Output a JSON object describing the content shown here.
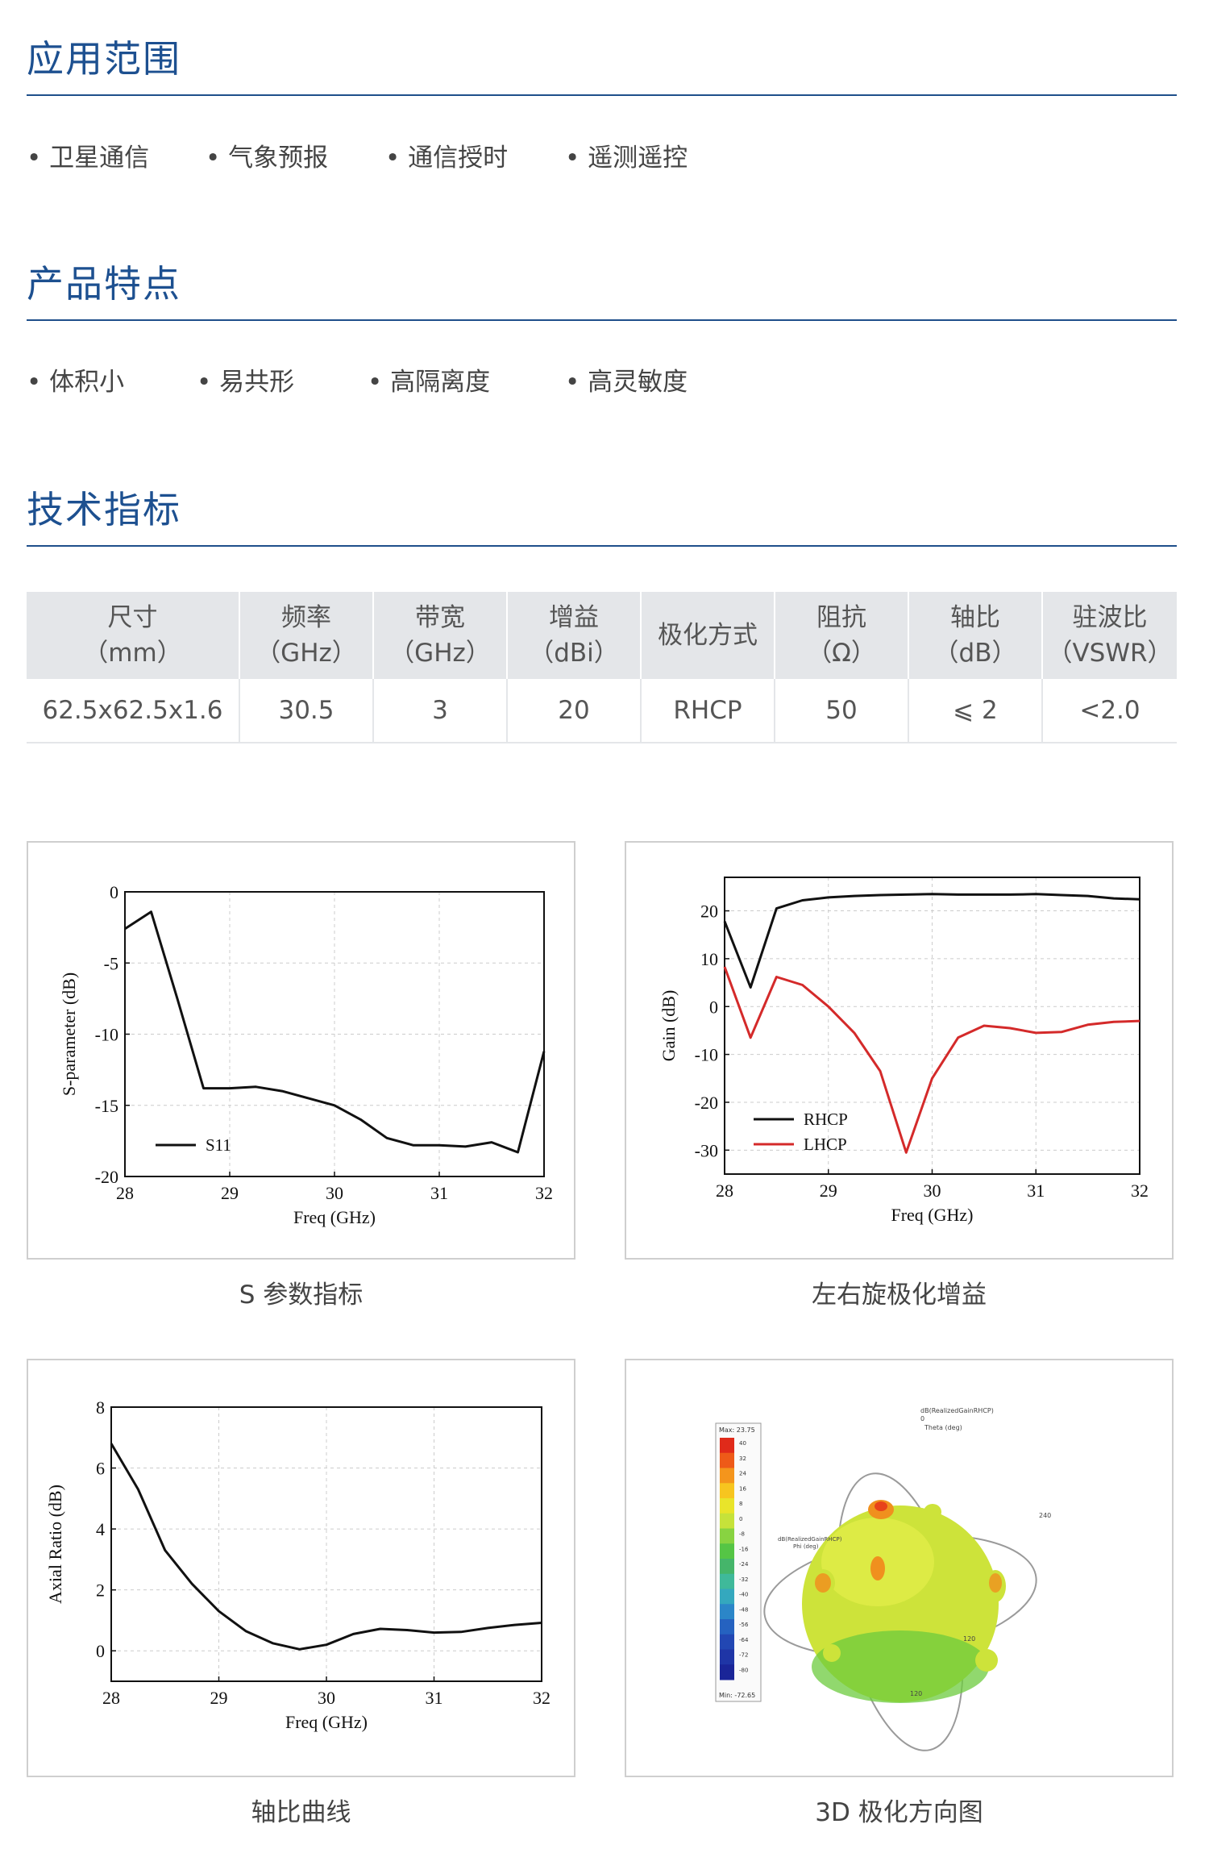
{
  "sections": {
    "application": {
      "title": "应用范围",
      "items": [
        "卫星通信",
        "气象预报",
        "通信授时",
        "遥测遥控"
      ]
    },
    "features": {
      "title": "产品特点",
      "items": [
        "体积小",
        "易共形",
        "高隔离度",
        "高灵敏度"
      ]
    },
    "specs": {
      "title": "技术指标",
      "headers": [
        [
          "尺寸",
          "（mm）"
        ],
        [
          "频率",
          "（GHz）"
        ],
        [
          "带宽",
          "（GHz）"
        ],
        [
          "增益",
          "（dBi）"
        ],
        [
          "极化方式",
          ""
        ],
        [
          "阻抗",
          "（Ω）"
        ],
        [
          "轴比",
          "（dB）"
        ],
        [
          "驻波比",
          "（VSWR）"
        ]
      ],
      "values": [
        "62.5x62.5x1.6",
        "30.5",
        "3",
        "20",
        "RHCP",
        "50",
        "⩽ 2",
        "<2.0"
      ]
    }
  },
  "captions": {
    "s_param": "S 参数指标",
    "gain": "左右旋极化增益",
    "axial": "轴比曲线",
    "pattern3d": "3D 极化方向图"
  },
  "chart_data": [
    {
      "type": "line",
      "xlabel": "Freq (GHz)",
      "ylabel": "S-parameter (dB)",
      "xlim": [
        28,
        32
      ],
      "ylim": [
        -20,
        0
      ],
      "xticks": [
        "28",
        "29",
        "30",
        "31",
        "32"
      ],
      "yticks": [
        "0",
        "-5",
        "-10",
        "-15",
        "-20"
      ],
      "legend_position": "bottom-left",
      "series": [
        {
          "name": "S11",
          "color": "#111111",
          "x": [
            28,
            28.25,
            28.5,
            28.75,
            29,
            29.25,
            29.5,
            29.75,
            30,
            30.25,
            30.5,
            30.75,
            31,
            31.25,
            31.5,
            31.75,
            32
          ],
          "y": [
            -2.6,
            -1.4,
            -7.5,
            -13.8,
            -13.8,
            -13.7,
            -14.0,
            -14.5,
            -15.0,
            -16.0,
            -17.3,
            -17.8,
            -17.8,
            -17.9,
            -17.6,
            -18.3,
            -11.2
          ]
        }
      ]
    },
    {
      "type": "line",
      "xlabel": "Freq (GHz)",
      "ylabel": "Gain (dB)",
      "xlim": [
        28,
        32
      ],
      "ylim": [
        -35,
        27
      ],
      "xticks": [
        "28",
        "29",
        "30",
        "31",
        "32"
      ],
      "yticks": [
        "20",
        "10",
        "0",
        "-10",
        "-20",
        "-30"
      ],
      "legend_position": "bottom-left",
      "series": [
        {
          "name": "RHCP",
          "color": "#111111",
          "x": [
            28,
            28.25,
            28.5,
            28.75,
            29,
            29.25,
            29.5,
            29.75,
            30,
            30.25,
            30.5,
            30.75,
            31,
            31.25,
            31.5,
            31.75,
            32
          ],
          "y": [
            17.8,
            4.0,
            20.5,
            22.2,
            22.8,
            23.1,
            23.3,
            23.4,
            23.5,
            23.4,
            23.4,
            23.4,
            23.5,
            23.3,
            23.1,
            22.6,
            22.4
          ]
        },
        {
          "name": "LHCP",
          "color": "#d42a2a",
          "x": [
            28,
            28.25,
            28.5,
            28.75,
            29,
            29.25,
            29.5,
            29.75,
            30,
            30.25,
            30.5,
            30.75,
            31,
            31.25,
            31.5,
            31.75,
            32
          ],
          "y": [
            8.3,
            -6.5,
            6.2,
            4.5,
            0.0,
            -5.5,
            -13.5,
            -30.5,
            -15.0,
            -6.5,
            -4.0,
            -4.5,
            -5.5,
            -5.3,
            -3.8,
            -3.2,
            -3.0
          ]
        }
      ]
    },
    {
      "type": "line",
      "xlabel": "Freq (GHz)",
      "ylabel": "Axial Ratio (dB)",
      "xlim": [
        28,
        32
      ],
      "ylim": [
        -1,
        8
      ],
      "xticks": [
        "28",
        "29",
        "30",
        "31",
        "32"
      ],
      "yticks": [
        "8",
        "6",
        "4",
        "2",
        "0"
      ],
      "series": [
        {
          "color": "#111111",
          "x": [
            28,
            28.25,
            28.5,
            28.75,
            29,
            29.25,
            29.5,
            29.75,
            30,
            30.25,
            30.5,
            30.75,
            31,
            31.25,
            31.5,
            31.75,
            32
          ],
          "y": [
            6.8,
            5.3,
            3.3,
            2.2,
            1.3,
            0.65,
            0.25,
            0.05,
            0.2,
            0.55,
            0.72,
            0.68,
            0.6,
            0.62,
            0.75,
            0.85,
            0.92
          ]
        }
      ]
    }
  ],
  "pattern3d": {
    "colorbar_max": "Max: 23.75",
    "colorbar_min": "Min: -72.65",
    "colorbar_ticks": [
      "40",
      "32",
      "24",
      "16",
      "8",
      "0",
      "-8",
      "-16",
      "-24",
      "-32",
      "-40",
      "-48",
      "-56",
      "-64",
      "-72",
      "-80"
    ],
    "colorbar_colors": [
      "#e02a1a",
      "#ee5a18",
      "#f4951c",
      "#f7c51f",
      "#e9e42a",
      "#c6e23a",
      "#88d341",
      "#55c545",
      "#45b56a",
      "#3fb99a",
      "#34a8be",
      "#2b86c8",
      "#2562c0",
      "#2247b3",
      "#1f35a6",
      "#1a2598"
    ],
    "top_label": "dB(RealizedGainRHCP)",
    "theta_label": "Theta (deg)",
    "side_label": "dB(RealizedGainRHCP)",
    "phi_label": "Phi (deg)",
    "zero_label": "0",
    "ring_labels": [
      "240",
      "120",
      "120"
    ],
    "body_color": "#cde33a",
    "hot_color": "#f0901e"
  }
}
